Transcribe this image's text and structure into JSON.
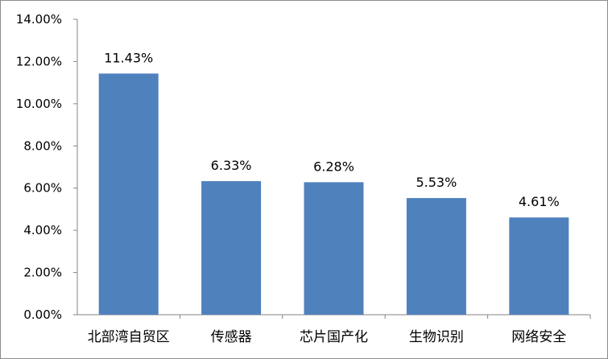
{
  "chart_data": {
    "type": "bar",
    "title": "",
    "xlabel": "",
    "ylabel": "",
    "categories": [
      "北部湾自贸区",
      "传感器",
      "芯片国产化",
      "生物识别",
      "网络安全"
    ],
    "values": [
      11.43,
      6.33,
      6.28,
      5.53,
      4.61
    ],
    "data_labels": [
      "11.43%",
      "6.33%",
      "6.28%",
      "5.53%",
      "4.61%"
    ],
    "ylim": [
      0,
      14
    ],
    "yticks": [
      0,
      2,
      4,
      6,
      8,
      10,
      12,
      14
    ],
    "ytick_labels": [
      "0.00%",
      "2.00%",
      "4.00%",
      "6.00%",
      "8.00%",
      "10.00%",
      "12.00%",
      "14.00%"
    ],
    "grid": false,
    "legend": "none",
    "bar_color": "#4f81bd",
    "axis_color": "#868686"
  }
}
